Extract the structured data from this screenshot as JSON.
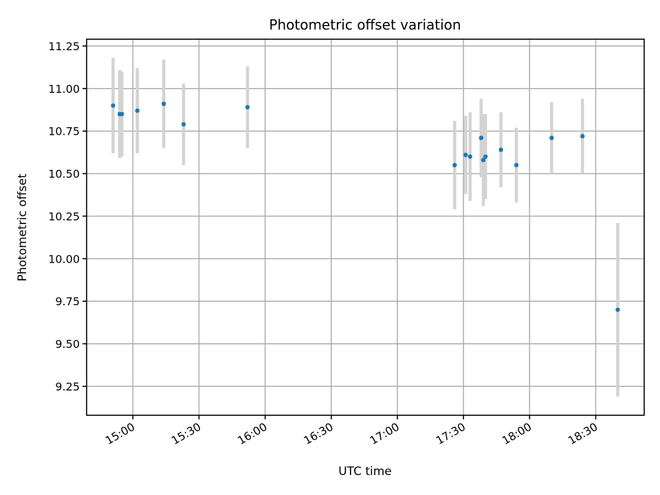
{
  "chart_data": {
    "type": "scatter",
    "title": "Photometric offset variation",
    "xlabel": "UTC time",
    "ylabel": "Photometric offset",
    "xlim": [
      "14:39",
      "18:52"
    ],
    "ylim": [
      9.08,
      11.29
    ],
    "x_ticks": [
      "15:00",
      "15:30",
      "16:00",
      "16:30",
      "17:00",
      "17:30",
      "18:00",
      "18:30"
    ],
    "y_ticks": [
      "9.25",
      "9.50",
      "9.75",
      "10.00",
      "10.25",
      "10.50",
      "10.75",
      "11.00",
      "11.25"
    ],
    "grid": true,
    "colors": {
      "point": "#1f77b4",
      "errorbar": "#d3d3d3"
    },
    "series": [
      {
        "points": [
          {
            "x": "14:51",
            "y": 10.9,
            "err": 0.28
          },
          {
            "x": "14:54",
            "y": 10.85,
            "err": 0.26
          },
          {
            "x": "14:55",
            "y": 10.85,
            "err": 0.25
          },
          {
            "x": "15:02",
            "y": 10.87,
            "err": 0.25
          },
          {
            "x": "15:14",
            "y": 10.91,
            "err": 0.26
          },
          {
            "x": "15:23",
            "y": 10.79,
            "err": 0.24
          },
          {
            "x": "15:52",
            "y": 10.89,
            "err": 0.24
          },
          {
            "x": "17:26",
            "y": 10.55,
            "err": 0.26
          },
          {
            "x": "17:31",
            "y": 10.61,
            "err": 0.23
          },
          {
            "x": "17:33",
            "y": 10.6,
            "err": 0.26
          },
          {
            "x": "17:38",
            "y": 10.71,
            "err": 0.23
          },
          {
            "x": "17:39",
            "y": 10.58,
            "err": 0.27
          },
          {
            "x": "17:40",
            "y": 10.6,
            "err": 0.25
          },
          {
            "x": "17:47",
            "y": 10.64,
            "err": 0.22
          },
          {
            "x": "17:54",
            "y": 10.55,
            "err": 0.22
          },
          {
            "x": "18:10",
            "y": 10.71,
            "err": 0.21
          },
          {
            "x": "18:24",
            "y": 10.72,
            "err": 0.22
          },
          {
            "x": "18:40",
            "y": 9.7,
            "err": 0.51
          }
        ]
      }
    ]
  }
}
